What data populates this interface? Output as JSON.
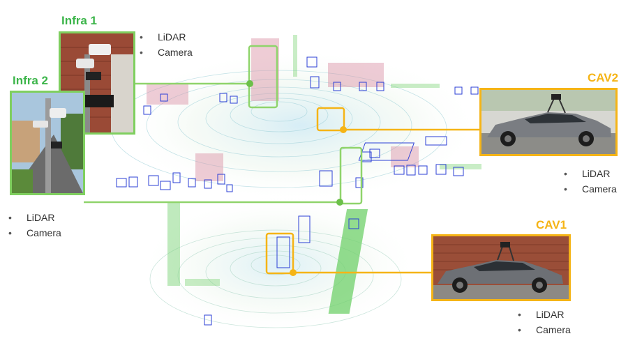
{
  "infra1": {
    "title": "Infra 1",
    "sensors": [
      "LiDAR",
      "Camera"
    ]
  },
  "infra2": {
    "title": "Infra 2",
    "sensors": [
      "LiDAR",
      "Camera"
    ]
  },
  "cav2": {
    "title": "CAV2",
    "sensors": [
      "LiDAR",
      "Camera"
    ]
  },
  "cav1": {
    "title": "CAV1",
    "sensors": [
      "LiDAR",
      "Camera"
    ]
  },
  "colors": {
    "infra_green": "#7fcf5f",
    "infra_label": "#3cb54a",
    "cav_gold": "#f5b416",
    "bbox_blue": "#2b3fd6"
  }
}
